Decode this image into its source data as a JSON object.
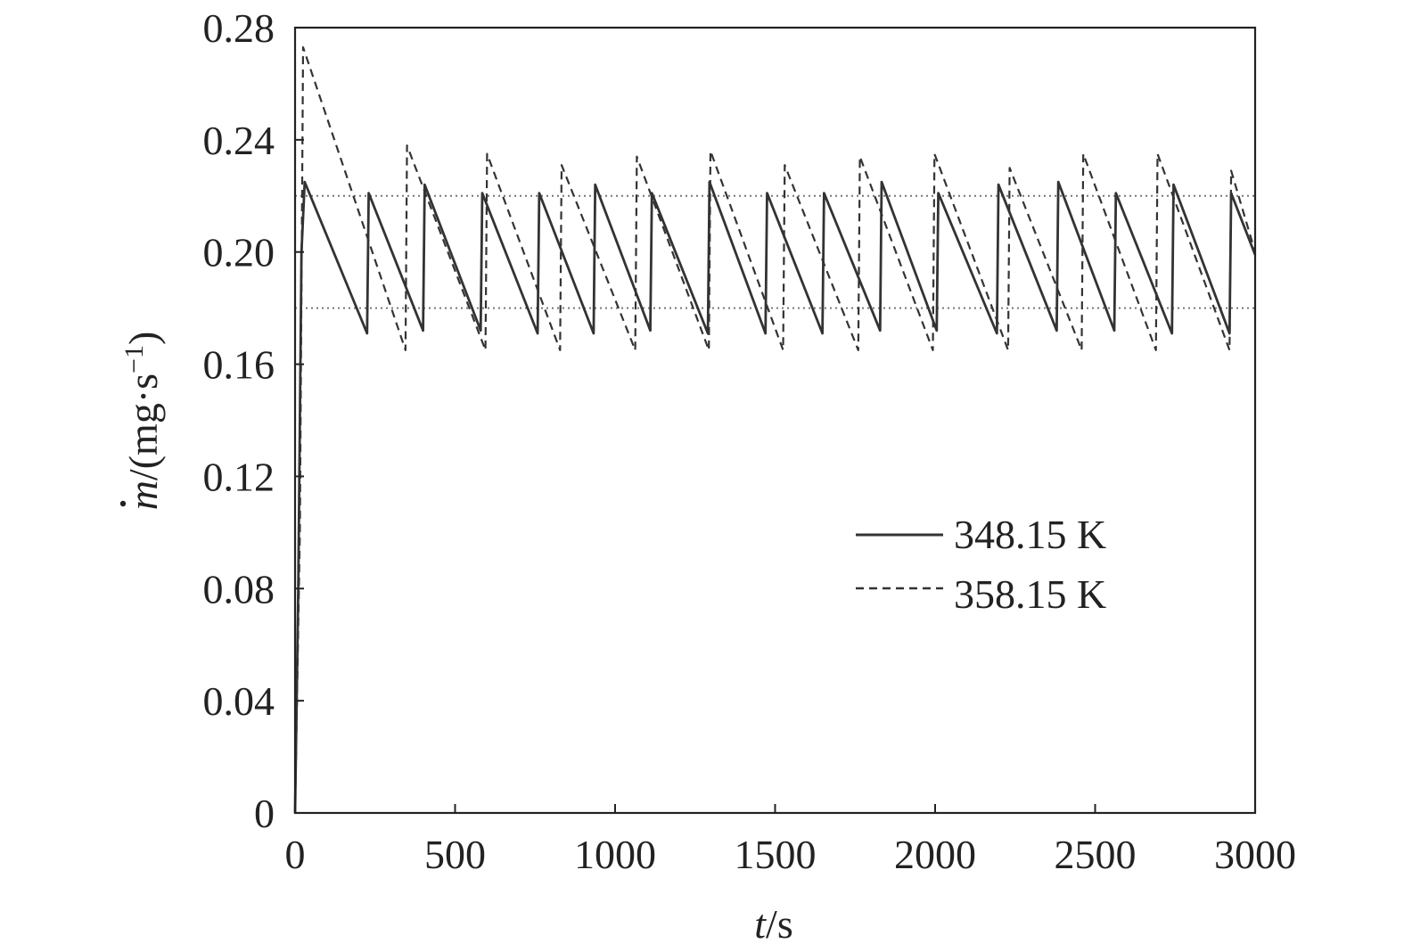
{
  "chart_data": {
    "type": "line",
    "xlabel_var": "t",
    "xlabel_unit": "/s",
    "ylabel_var": "m",
    "ylabel_unit": "/(mg·s",
    "ylabel_exp": "−1",
    "ylabel_close": ")",
    "xlim": [
      0,
      3000
    ],
    "ylim": [
      0,
      0.28
    ],
    "xticks": [
      0,
      500,
      1000,
      1500,
      2000,
      2500,
      3000
    ],
    "xtick_labels": [
      "0",
      "500",
      "1000",
      "1500",
      "2000",
      "2500",
      "3000"
    ],
    "yticks": [
      0,
      0.04,
      0.08,
      0.12,
      0.16,
      0.2,
      0.24,
      0.28
    ],
    "ytick_labels": [
      "0",
      "0.04",
      "0.08",
      "0.12",
      "0.16",
      "0.20",
      "0.24",
      "0.28"
    ],
    "legend_position": "middle-right",
    "grid": false,
    "reference_lines": [
      0.18,
      0.22
    ],
    "series": [
      {
        "name": "348.15 K",
        "style": "solid",
        "color": "#333333",
        "x": [
          0,
          10,
          20,
          30,
          225,
          230,
          400,
          405,
          580,
          585,
          758,
          763,
          933,
          938,
          1110,
          1115,
          1290,
          1295,
          1470,
          1475,
          1648,
          1653,
          1828,
          1833,
          2005,
          2010,
          2193,
          2198,
          2380,
          2385,
          2560,
          2565,
          2740,
          2745,
          2920,
          2925,
          3000
        ],
        "y": [
          0,
          0.08,
          0.2,
          0.225,
          0.171,
          0.221,
          0.172,
          0.224,
          0.172,
          0.221,
          0.171,
          0.221,
          0.171,
          0.224,
          0.172,
          0.221,
          0.171,
          0.225,
          0.171,
          0.221,
          0.171,
          0.221,
          0.172,
          0.225,
          0.172,
          0.221,
          0.171,
          0.224,
          0.172,
          0.225,
          0.172,
          0.221,
          0.171,
          0.224,
          0.171,
          0.221,
          0.199
        ]
      },
      {
        "name": "358.15 K",
        "style": "dashed",
        "color": "#333333",
        "x": [
          0,
          15,
          25,
          345,
          350,
          595,
          600,
          828,
          833,
          1063,
          1068,
          1293,
          1298,
          1525,
          1530,
          1760,
          1765,
          1993,
          1998,
          2228,
          2233,
          2458,
          2463,
          2690,
          2695,
          2920,
          2925,
          3000
        ],
        "y": [
          0,
          0.1,
          0.273,
          0.165,
          0.238,
          0.165,
          0.235,
          0.165,
          0.231,
          0.165,
          0.234,
          0.165,
          0.236,
          0.165,
          0.231,
          0.165,
          0.234,
          0.165,
          0.235,
          0.165,
          0.23,
          0.165,
          0.235,
          0.165,
          0.235,
          0.165,
          0.229,
          0.2
        ]
      }
    ]
  }
}
